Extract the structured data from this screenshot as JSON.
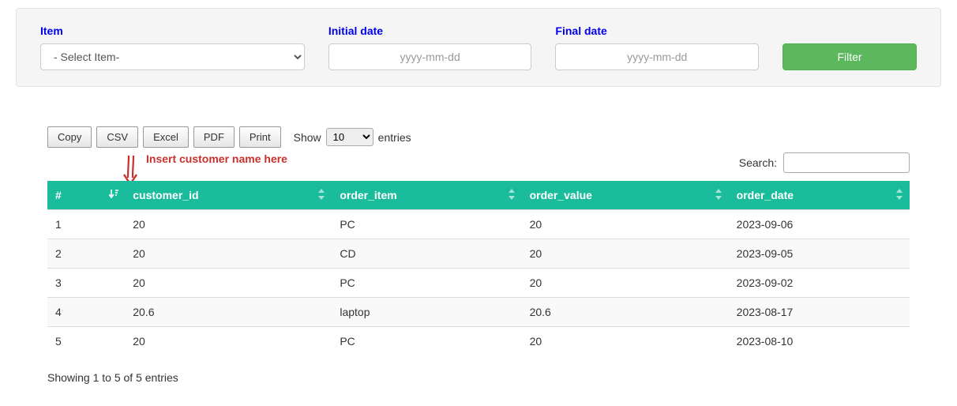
{
  "filter": {
    "item_label": "Item",
    "item_placeholder": "- Select Item-",
    "initial_date_label": "Initial date",
    "final_date_label": "Final date",
    "date_placeholder": "yyyy-mm-dd",
    "filter_btn": "Filter"
  },
  "toolbar": {
    "copy": "Copy",
    "csv": "CSV",
    "excel": "Excel",
    "pdf": "PDF",
    "print": "Print",
    "show_label": "Show",
    "entries_label": "entries",
    "page_size": "10",
    "search_label": "Search:"
  },
  "annotation": {
    "text": "Insert customer name here"
  },
  "table": {
    "columns": [
      "#",
      "customer_id",
      "order_item",
      "order_value",
      "order_date"
    ],
    "col_widths": [
      "9%",
      "24%",
      "22%",
      "24%",
      "21%"
    ],
    "header_bg": "#1abc9c",
    "header_fg": "#ffffff",
    "sorted_col_index": 0,
    "sort_dir": "desc",
    "rows": [
      [
        "1",
        "20",
        "PC",
        "20",
        "2023-09-06"
      ],
      [
        "2",
        "20",
        "CD",
        "20",
        "2023-09-05"
      ],
      [
        "3",
        "20",
        "PC",
        "20",
        "2023-09-02"
      ],
      [
        "4",
        "20.6",
        "laptop",
        "20.6",
        "2023-08-17"
      ],
      [
        "5",
        "20",
        "PC",
        "20",
        "2023-08-10"
      ]
    ]
  },
  "footer": {
    "info": "Showing 1 to 5 of 5 entries"
  },
  "colors": {
    "filter_panel_bg": "#f5f5f5",
    "filter_label": "#0000ee",
    "filter_btn_bg": "#5cb85c",
    "annotation": "#c9302c",
    "row_border": "#dddddd"
  }
}
